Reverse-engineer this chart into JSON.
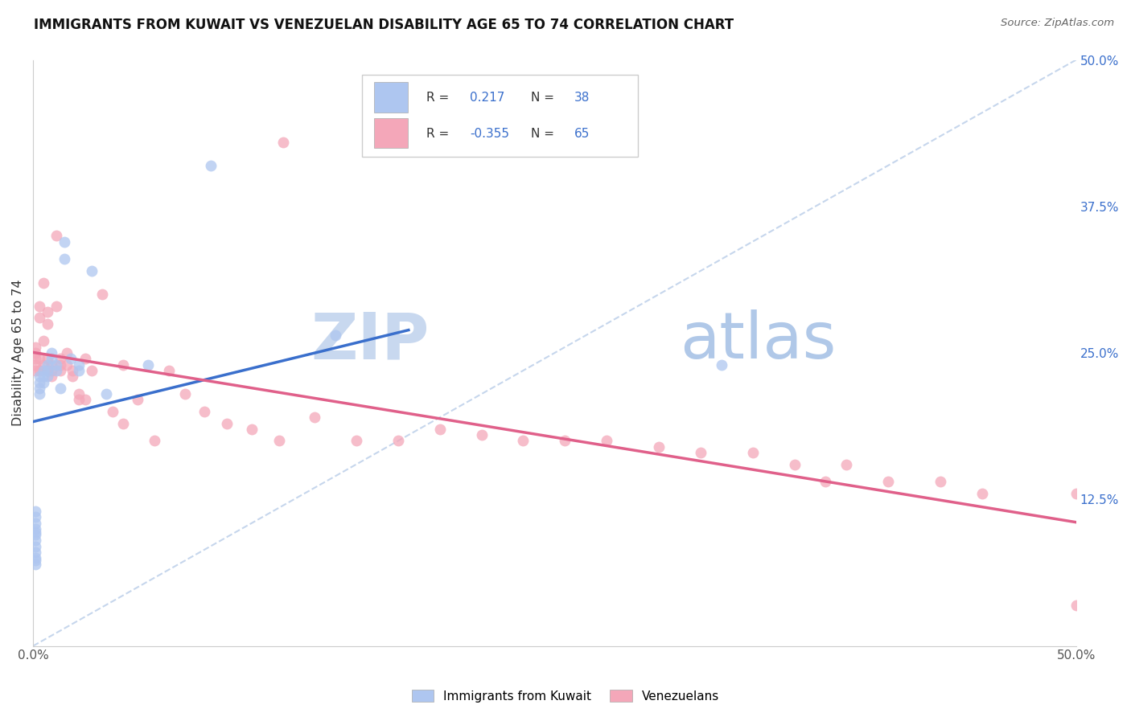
{
  "title": "IMMIGRANTS FROM KUWAIT VS VENEZUELAN DISABILITY AGE 65 TO 74 CORRELATION CHART",
  "source": "Source: ZipAtlas.com",
  "ylabel": "Disability Age 65 to 74",
  "xlim": [
    0.0,
    0.5
  ],
  "ylim": [
    0.0,
    0.5
  ],
  "ytick_positions": [
    0.125,
    0.25,
    0.375,
    0.5
  ],
  "ytick_labels": [
    "12.5%",
    "25.0%",
    "37.5%",
    "50.0%"
  ],
  "grid_color": "#e0e0e0",
  "background_color": "#ffffff",
  "kuwait_color": "#aec6f0",
  "venezuela_color": "#f4a7b9",
  "kuwait_line_color": "#3a6fcc",
  "venezuela_line_color": "#e0608a",
  "dashed_line_color": "#b8cce8",
  "legend_blue": "#3a6fcc",
  "kuwait_R": "0.217",
  "kuwait_N": "38",
  "venezuela_R": "-0.355",
  "venezuela_N": "65",
  "watermark_zip": "ZIP",
  "watermark_atlas": "atlas",
  "watermark_color_zip": "#c8d8ef",
  "watermark_color_atlas": "#b0c8e8",
  "kuwait_x": [
    0.001,
    0.001,
    0.001,
    0.001,
    0.001,
    0.001,
    0.001,
    0.003,
    0.003,
    0.003,
    0.003,
    0.005,
    0.005,
    0.005,
    0.007,
    0.007,
    0.007,
    0.009,
    0.009,
    0.011,
    0.011,
    0.013,
    0.015,
    0.015,
    0.018,
    0.022,
    0.022,
    0.028,
    0.035,
    0.055,
    0.085,
    0.145,
    0.33,
    0.001,
    0.001,
    0.001,
    0.001,
    0.001
  ],
  "kuwait_y": [
    0.095,
    0.09,
    0.085,
    0.08,
    0.075,
    0.073,
    0.07,
    0.22,
    0.225,
    0.23,
    0.215,
    0.235,
    0.23,
    0.225,
    0.24,
    0.235,
    0.23,
    0.25,
    0.245,
    0.24,
    0.235,
    0.22,
    0.33,
    0.345,
    0.245,
    0.24,
    0.235,
    0.32,
    0.215,
    0.24,
    0.41,
    0.265,
    0.24,
    0.115,
    0.11,
    0.105,
    0.1,
    0.097
  ],
  "venezuela_x": [
    0.001,
    0.001,
    0.001,
    0.001,
    0.001,
    0.003,
    0.003,
    0.003,
    0.003,
    0.005,
    0.005,
    0.005,
    0.007,
    0.007,
    0.007,
    0.007,
    0.009,
    0.009,
    0.009,
    0.011,
    0.011,
    0.013,
    0.013,
    0.013,
    0.016,
    0.016,
    0.019,
    0.019,
    0.022,
    0.022,
    0.025,
    0.025,
    0.028,
    0.033,
    0.038,
    0.043,
    0.043,
    0.05,
    0.058,
    0.065,
    0.073,
    0.082,
    0.093,
    0.105,
    0.118,
    0.135,
    0.155,
    0.175,
    0.195,
    0.215,
    0.235,
    0.255,
    0.275,
    0.3,
    0.32,
    0.345,
    0.365,
    0.39,
    0.41,
    0.435,
    0.455,
    0.38,
    0.5,
    0.5,
    0.12
  ],
  "venezuela_y": [
    0.255,
    0.25,
    0.245,
    0.24,
    0.235,
    0.29,
    0.28,
    0.245,
    0.235,
    0.31,
    0.26,
    0.24,
    0.285,
    0.275,
    0.245,
    0.235,
    0.24,
    0.235,
    0.23,
    0.35,
    0.29,
    0.245,
    0.24,
    0.235,
    0.25,
    0.24,
    0.235,
    0.23,
    0.215,
    0.21,
    0.245,
    0.21,
    0.235,
    0.3,
    0.2,
    0.24,
    0.19,
    0.21,
    0.175,
    0.235,
    0.215,
    0.2,
    0.19,
    0.185,
    0.175,
    0.195,
    0.175,
    0.175,
    0.185,
    0.18,
    0.175,
    0.175,
    0.175,
    0.17,
    0.165,
    0.165,
    0.155,
    0.155,
    0.14,
    0.14,
    0.13,
    0.14,
    0.035,
    0.13,
    0.43
  ]
}
